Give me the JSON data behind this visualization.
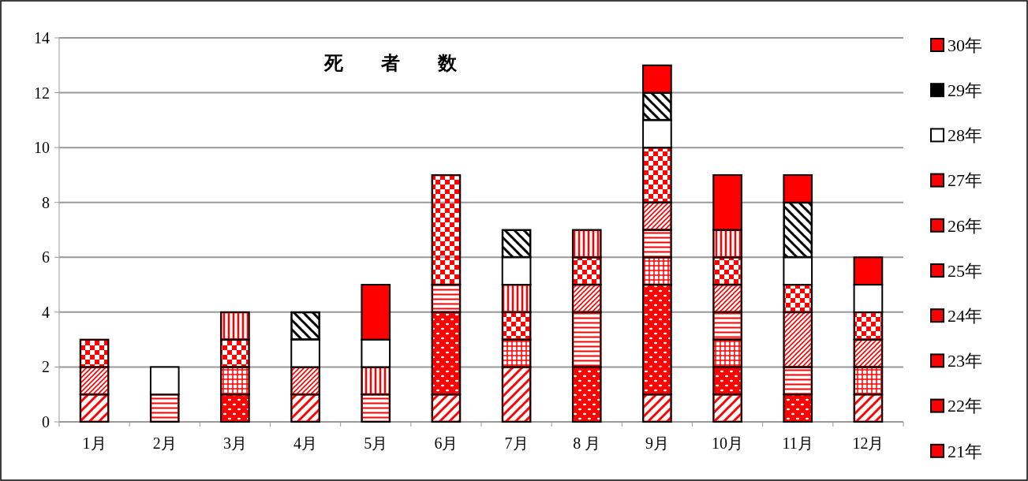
{
  "chart_data": {
    "type": "bar",
    "stacked": true,
    "title": "死　　者　　数",
    "categories": [
      "1月",
      "2月",
      "3月",
      "4月",
      "5月",
      "6月",
      "7月",
      "8 月",
      "9月",
      "10月",
      "11月",
      "12月"
    ],
    "series": [
      {
        "name": "21年",
        "color": "#ff0000",
        "values": [
          1,
          0,
          0,
          1,
          0,
          1,
          2,
          0,
          1,
          1,
          0,
          1
        ]
      },
      {
        "name": "22年",
        "color": "#ff0000",
        "values": [
          0,
          0,
          1,
          0,
          0,
          3,
          0,
          2,
          4,
          1,
          1,
          0
        ]
      },
      {
        "name": "23年",
        "color": "#ff0000",
        "values": [
          0,
          0,
          1,
          0,
          0,
          0,
          1,
          0,
          1,
          1,
          0,
          1
        ]
      },
      {
        "name": "24年",
        "color": "#ff0000",
        "values": [
          0,
          1,
          0,
          0,
          1,
          1,
          0,
          2,
          1,
          1,
          1,
          0
        ]
      },
      {
        "name": "25年",
        "color": "#ff0000",
        "values": [
          1,
          0,
          0,
          1,
          0,
          0,
          0,
          1,
          1,
          1,
          2,
          1
        ]
      },
      {
        "name": "26年",
        "color": "#ff0000",
        "values": [
          1,
          0,
          1,
          0,
          0,
          4,
          1,
          1,
          2,
          1,
          1,
          1
        ]
      },
      {
        "name": "27年",
        "color": "#ff0000",
        "values": [
          0,
          0,
          1,
          0,
          1,
          0,
          1,
          1,
          0,
          1,
          0,
          0
        ]
      },
      {
        "name": "28年",
        "color": "#ffffff",
        "values": [
          0,
          1,
          0,
          1,
          1,
          0,
          1,
          0,
          1,
          0,
          1,
          1
        ]
      },
      {
        "name": "29年",
        "color": "#000000",
        "values": [
          0,
          0,
          0,
          1,
          0,
          0,
          1,
          0,
          1,
          0,
          2,
          0
        ]
      },
      {
        "name": "30年",
        "color": "#ff0000",
        "values": [
          0,
          0,
          0,
          0,
          2,
          0,
          0,
          0,
          1,
          2,
          1,
          1
        ]
      }
    ],
    "ylim": [
      0,
      14
    ],
    "yticks": [
      0,
      2,
      4,
      6,
      8,
      10,
      12,
      14
    ],
    "grid": "y",
    "legend": "right"
  }
}
